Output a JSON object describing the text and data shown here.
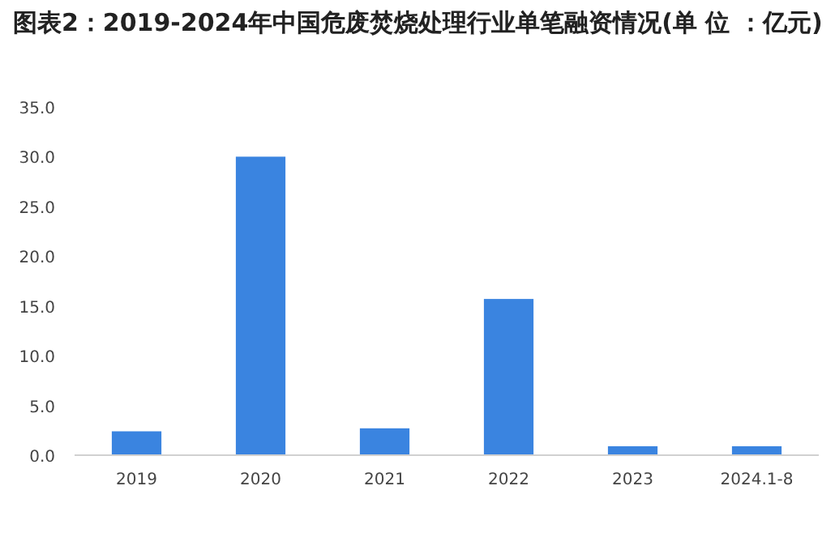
{
  "chart_data": {
    "type": "bar",
    "title": "图表2：2019-2024年中国危废焚烧处理行业单笔融资情况(单 位 ：亿元)",
    "categories": [
      "2019",
      "2020",
      "2021",
      "2022",
      "2023",
      "2024.1-8"
    ],
    "values": [
      2.4,
      30.0,
      2.7,
      15.7,
      0.9,
      0.9
    ],
    "color": "#3a84e0",
    "ylim": [
      0,
      35
    ],
    "yticks": [
      {
        "value": 0,
        "label": "0.0"
      },
      {
        "value": 5,
        "label": "5.0"
      },
      {
        "value": 10,
        "label": "10.0"
      },
      {
        "value": 15,
        "label": "15.0"
      },
      {
        "value": 20,
        "label": "20.0"
      },
      {
        "value": 25,
        "label": "25.0"
      },
      {
        "value": 30,
        "label": "30.0"
      },
      {
        "value": 35,
        "label": "35.0"
      }
    ],
    "grid": false
  }
}
